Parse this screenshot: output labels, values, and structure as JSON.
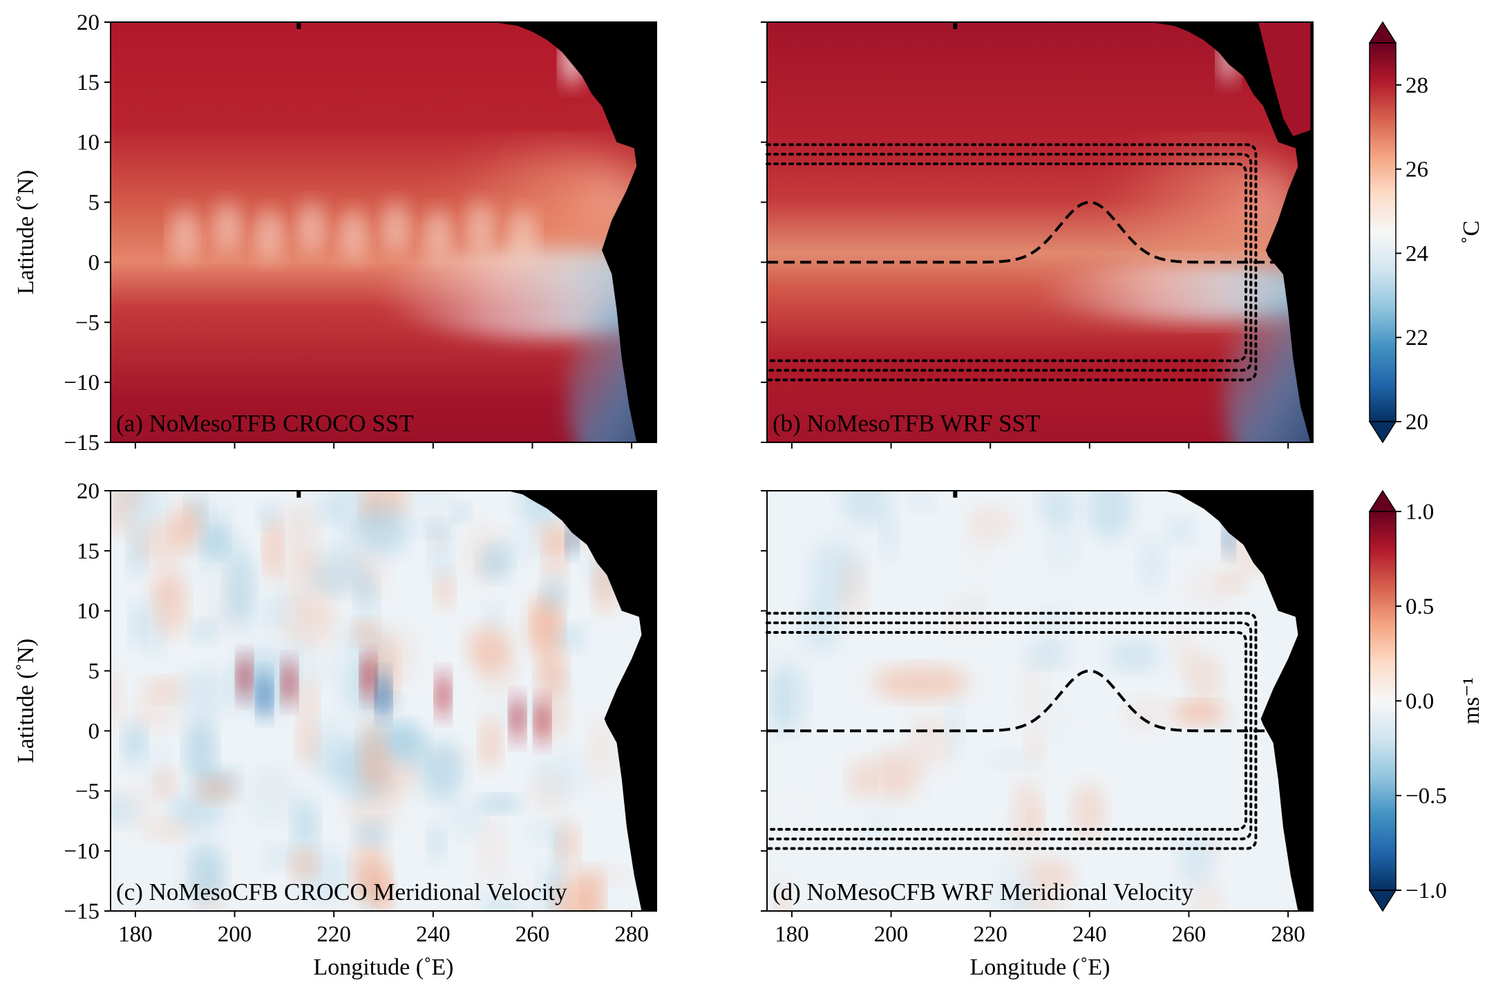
{
  "chart_data": [
    {
      "type": "heatmap",
      "panel": "a",
      "annotation": "(a) NoMesoTFB CROCO SST",
      "xlabel": "",
      "ylabel": "Latitude (˚N)",
      "xlim": [
        175,
        285
      ],
      "ylim": [
        -15,
        20
      ],
      "xticks": [
        180,
        200,
        220,
        240,
        260,
        280
      ],
      "yticks": [
        20,
        15,
        10,
        5,
        0,
        -5,
        -10,
        -15
      ],
      "xtick_labels_visible": false,
      "ytick_labels_visible": true,
      "variable": "sst",
      "colorbar_group": "sst",
      "overlays": false
    },
    {
      "type": "heatmap",
      "panel": "b",
      "annotation": "(b) NoMesoTFB WRF SST",
      "xlabel": "",
      "ylabel": "",
      "xlim": [
        175,
        285
      ],
      "ylim": [
        -15,
        20
      ],
      "xticks": [
        180,
        200,
        220,
        240,
        260,
        280
      ],
      "yticks": [
        20,
        15,
        10,
        5,
        0,
        -5,
        -10,
        -15
      ],
      "xtick_labels_visible": false,
      "ytick_labels_visible": false,
      "variable": "sst",
      "colorbar_group": "sst",
      "overlays": true
    },
    {
      "type": "heatmap",
      "panel": "c",
      "annotation": "(c) NoMesoCFB CROCO Meridional Velocity",
      "xlabel": "Longitude (˚E)",
      "ylabel": "Latitude (˚N)",
      "xlim": [
        175,
        285
      ],
      "ylim": [
        -15,
        20
      ],
      "xticks": [
        180,
        200,
        220,
        240,
        260,
        280
      ],
      "yticks": [
        20,
        15,
        10,
        5,
        0,
        -5,
        -10,
        -15
      ],
      "xtick_labels_visible": true,
      "ytick_labels_visible": true,
      "variable": "v",
      "colorbar_group": "v",
      "overlays": false
    },
    {
      "type": "heatmap",
      "panel": "d",
      "annotation": "(d) NoMesoCFB WRF Meridional Velocity",
      "xlabel": "Longitude (˚E)",
      "ylabel": "",
      "xlim": [
        175,
        285
      ],
      "ylim": [
        -15,
        20
      ],
      "xticks": [
        180,
        200,
        220,
        240,
        260,
        280
      ],
      "yticks": [
        20,
        15,
        10,
        5,
        0,
        -5,
        -10,
        -15
      ],
      "xtick_labels_visible": true,
      "ytick_labels_visible": false,
      "variable": "v",
      "colorbar_group": "v",
      "overlays": true
    }
  ],
  "colorbars": {
    "sst": {
      "label": "˚C",
      "range": [
        20,
        29
      ],
      "ticks": [
        28,
        26,
        24,
        22,
        20
      ],
      "extend": "both"
    },
    "v": {
      "label": "ms⁻¹",
      "range": [
        -1.0,
        1.0
      ],
      "ticks": [
        "1.0",
        "0.5",
        "0.0",
        "−0.5",
        "−1.0"
      ],
      "tick_values": [
        1.0,
        0.5,
        0.0,
        -0.5,
        -1.0
      ],
      "extend": "both"
    }
  },
  "overlay_curve": {
    "style": "dashed",
    "description_values": {
      "baseline_lat": 0,
      "peak_lat": 5,
      "peak_lon": 240,
      "start_lon": 175,
      "end_lon": 280
    }
  },
  "overlay_boxes": {
    "style": "dotted",
    "north_band_lats": [
      8.2,
      9.0,
      9.8
    ],
    "south_band_lats": [
      -8.2,
      -9.0,
      -9.8
    ],
    "west_lon": 175,
    "east_lons": [
      271.5,
      272.5,
      273.5
    ]
  },
  "colormap": {
    "name": "RdBu_r",
    "stops": [
      "#053061",
      "#2166ac",
      "#4393c3",
      "#92c5de",
      "#d1e5f0",
      "#f7f7f7",
      "#fddbc7",
      "#f4a582",
      "#d6604d",
      "#b2182b",
      "#67001f"
    ]
  },
  "land_color": "#000000"
}
